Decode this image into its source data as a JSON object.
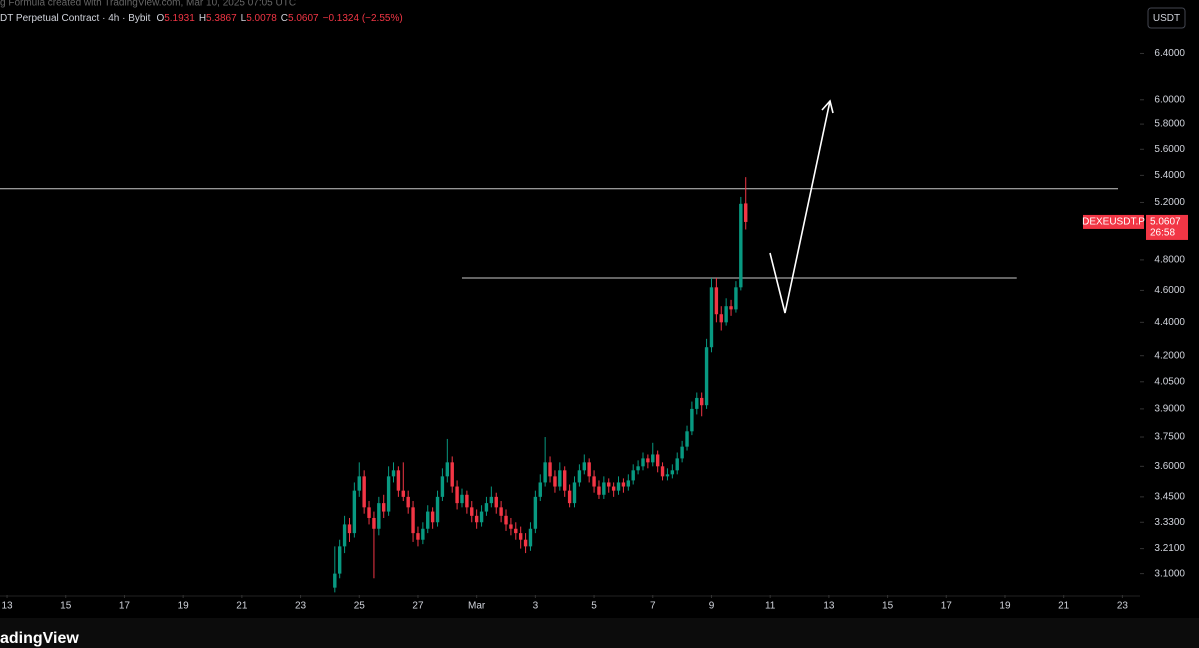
{
  "header": {
    "caption": "g Formula created with TradingView.com, Mar 10, 2025 07:05 UTC",
    "symbol": "DT Perpetual Contract · 4h · Bybit",
    "ohlc_labels": [
      "O",
      "H",
      "L",
      "C"
    ],
    "change": "−0.1324 (−2.55%)",
    "currency": "USDT",
    "ticker_tag": "DEXEUSDT.P",
    "countdown": "26:58",
    "brand": "adingView"
  },
  "chart_data": {
    "type": "candlestick",
    "log_scale": true,
    "up_color": "#089981",
    "down_color": "#f23645",
    "xlim": [
      12.76,
      51.6
    ],
    "ylim": [
      3.009,
      6.895
    ],
    "xticks": [
      13,
      15,
      17,
      19,
      21,
      23,
      25,
      27,
      {
        "value": 29,
        "label": "Mar"
      },
      {
        "value": 31,
        "label": "3"
      },
      {
        "value": 33,
        "label": "5"
      },
      {
        "value": 35,
        "label": "7"
      },
      {
        "value": 37,
        "label": "9"
      },
      {
        "value": 39,
        "label": "11"
      },
      {
        "value": 41,
        "label": "13"
      },
      {
        "value": 43,
        "label": "15"
      },
      {
        "value": 45,
        "label": "17"
      },
      {
        "value": 47,
        "label": "19"
      },
      {
        "value": 49,
        "label": "21"
      },
      {
        "value": 51,
        "label": "23"
      }
    ],
    "yticks": [
      {
        "value": 6.4,
        "label": "6.4000"
      },
      {
        "value": 6.0,
        "label": "6.0000"
      },
      {
        "value": 5.8,
        "label": "5.8000"
      },
      {
        "value": 5.6,
        "label": "5.6000"
      },
      {
        "value": 5.4,
        "label": "5.4000"
      },
      {
        "value": 5.2,
        "label": "5.2000"
      },
      {
        "value": 4.8,
        "label": "4.8000"
      },
      {
        "value": 4.6,
        "label": "4.6000"
      },
      {
        "value": 4.4,
        "label": "4.4000"
      },
      {
        "value": 4.2,
        "label": "4.2000"
      },
      {
        "value": 4.05,
        "label": "4.0500"
      },
      {
        "value": 3.9,
        "label": "3.9000"
      },
      {
        "value": 3.75,
        "label": "3.7500"
      },
      {
        "value": 3.6,
        "label": "3.6000"
      },
      {
        "value": 3.45,
        "label": "3.4500"
      },
      {
        "value": 3.33,
        "label": "3.3300"
      },
      {
        "value": 3.21,
        "label": "3.2100"
      },
      {
        "value": 3.1,
        "label": "3.1000"
      }
    ],
    "levels": [
      {
        "price": 5.3
      },
      {
        "price": 4.68,
        "from": 28.5,
        "to": 47.4
      }
    ],
    "x": [
      24.167,
      24.333,
      24.5,
      24.667,
      24.833,
      25,
      25.167,
      25.333,
      25.5,
      25.667,
      25.833,
      26,
      26.167,
      26.333,
      26.5,
      26.667,
      26.833,
      27,
      27.167,
      27.333,
      27.5,
      27.667,
      27.833,
      28,
      28.167,
      28.333,
      28.5,
      28.667,
      28.833,
      29,
      29.167,
      29.333,
      29.5,
      29.667,
      29.833,
      30,
      30.167,
      30.333,
      30.5,
      30.667,
      30.833,
      31,
      31.167,
      31.333,
      31.5,
      31.667,
      31.833,
      32,
      32.167,
      32.333,
      32.5,
      32.667,
      32.833,
      33,
      33.167,
      33.333,
      33.5,
      33.667,
      33.833,
      34,
      34.167,
      34.333,
      34.5,
      34.667,
      34.833,
      35,
      35.167,
      35.333,
      35.5,
      35.667,
      35.833,
      36,
      36.167,
      36.333,
      36.5,
      36.667,
      36.833,
      37,
      37.167,
      37.333,
      37.5,
      37.667,
      37.833,
      38,
      38.167
    ],
    "candles": [
      [
        3.04,
        3.22,
        3.02,
        3.1
      ],
      [
        3.1,
        3.25,
        3.08,
        3.22
      ],
      [
        3.22,
        3.36,
        3.19,
        3.32
      ],
      [
        3.32,
        3.35,
        3.24,
        3.28
      ],
      [
        3.28,
        3.52,
        3.26,
        3.48
      ],
      [
        3.48,
        3.62,
        3.45,
        3.55
      ],
      [
        3.55,
        3.58,
        3.37,
        3.4
      ],
      [
        3.4,
        3.43,
        3.32,
        3.35
      ],
      [
        3.35,
        3.38,
        3.08,
        3.3
      ],
      [
        3.3,
        3.45,
        3.27,
        3.42
      ],
      [
        3.42,
        3.46,
        3.35,
        3.38
      ],
      [
        3.38,
        3.6,
        3.36,
        3.55
      ],
      [
        3.55,
        3.62,
        3.52,
        3.58
      ],
      [
        3.58,
        3.6,
        3.45,
        3.48
      ],
      [
        3.48,
        3.62,
        3.43,
        3.45
      ],
      [
        3.45,
        3.48,
        3.37,
        3.4
      ],
      [
        3.4,
        3.43,
        3.24,
        3.28
      ],
      [
        3.28,
        3.31,
        3.22,
        3.25
      ],
      [
        3.25,
        3.33,
        3.23,
        3.3
      ],
      [
        3.3,
        3.41,
        3.28,
        3.38
      ],
      [
        3.38,
        3.4,
        3.3,
        3.33
      ],
      [
        3.33,
        3.48,
        3.31,
        3.45
      ],
      [
        3.45,
        3.59,
        3.43,
        3.55
      ],
      [
        3.55,
        3.74,
        3.52,
        3.62
      ],
      [
        3.62,
        3.65,
        3.47,
        3.5
      ],
      [
        3.5,
        3.53,
        3.39,
        3.42
      ],
      [
        3.42,
        3.49,
        3.4,
        3.46
      ],
      [
        3.46,
        3.48,
        3.37,
        3.4
      ],
      [
        3.4,
        3.43,
        3.33,
        3.36
      ],
      [
        3.36,
        3.39,
        3.3,
        3.33
      ],
      [
        3.33,
        3.41,
        3.31,
        3.38
      ],
      [
        3.38,
        3.45,
        3.36,
        3.42
      ],
      [
        3.42,
        3.5,
        3.4,
        3.45
      ],
      [
        3.45,
        3.47,
        3.37,
        3.4
      ],
      [
        3.4,
        3.43,
        3.33,
        3.36
      ],
      [
        3.36,
        3.39,
        3.29,
        3.32
      ],
      [
        3.32,
        3.35,
        3.27,
        3.3
      ],
      [
        3.3,
        3.33,
        3.25,
        3.28
      ],
      [
        3.28,
        3.31,
        3.21,
        3.25
      ],
      [
        3.25,
        3.28,
        3.19,
        3.22
      ],
      [
        3.22,
        3.33,
        3.2,
        3.3
      ],
      [
        3.3,
        3.48,
        3.28,
        3.45
      ],
      [
        3.45,
        3.56,
        3.43,
        3.52
      ],
      [
        3.52,
        3.75,
        3.5,
        3.62
      ],
      [
        3.62,
        3.65,
        3.52,
        3.55
      ],
      [
        3.55,
        3.58,
        3.47,
        3.5
      ],
      [
        3.5,
        3.62,
        3.48,
        3.58
      ],
      [
        3.58,
        3.6,
        3.45,
        3.48
      ],
      [
        3.48,
        3.51,
        3.4,
        3.42
      ],
      [
        3.42,
        3.55,
        3.4,
        3.52
      ],
      [
        3.52,
        3.61,
        3.5,
        3.58
      ],
      [
        3.58,
        3.66,
        3.56,
        3.62
      ],
      [
        3.62,
        3.64,
        3.52,
        3.55
      ],
      [
        3.55,
        3.58,
        3.47,
        3.5
      ],
      [
        3.5,
        3.53,
        3.44,
        3.46
      ],
      [
        3.46,
        3.55,
        3.44,
        3.52
      ],
      [
        3.52,
        3.54,
        3.47,
        3.5
      ],
      [
        3.5,
        3.52,
        3.45,
        3.48
      ],
      [
        3.48,
        3.55,
        3.46,
        3.52
      ],
      [
        3.52,
        3.54,
        3.47,
        3.5
      ],
      [
        3.5,
        3.56,
        3.48,
        3.53
      ],
      [
        3.53,
        3.61,
        3.51,
        3.58
      ],
      [
        3.58,
        3.63,
        3.56,
        3.6
      ],
      [
        3.6,
        3.67,
        3.58,
        3.64
      ],
      [
        3.64,
        3.66,
        3.59,
        3.62
      ],
      [
        3.62,
        3.72,
        3.6,
        3.66
      ],
      [
        3.66,
        3.68,
        3.57,
        3.6
      ],
      [
        3.6,
        3.62,
        3.53,
        3.55
      ],
      [
        3.55,
        3.59,
        3.53,
        3.56
      ],
      [
        3.56,
        3.61,
        3.54,
        3.58
      ],
      [
        3.58,
        3.67,
        3.56,
        3.64
      ],
      [
        3.64,
        3.73,
        3.62,
        3.7
      ],
      [
        3.7,
        3.81,
        3.68,
        3.78
      ],
      [
        3.78,
        3.94,
        3.76,
        3.9
      ],
      [
        3.9,
        3.99,
        3.87,
        3.96
      ],
      [
        3.96,
        3.99,
        3.86,
        3.92
      ],
      [
        3.92,
        4.3,
        3.9,
        4.25
      ],
      [
        4.25,
        4.68,
        4.22,
        4.62
      ],
      [
        4.62,
        4.68,
        4.4,
        4.45
      ],
      [
        4.45,
        4.5,
        4.35,
        4.4
      ],
      [
        4.4,
        4.55,
        4.38,
        4.5
      ],
      [
        4.5,
        4.54,
        4.44,
        4.48
      ],
      [
        4.48,
        4.66,
        4.46,
        4.62
      ],
      [
        4.62,
        5.24,
        4.6,
        5.19
      ],
      [
        5.1931,
        5.3867,
        5.0078,
        5.0607
      ]
    ]
  }
}
